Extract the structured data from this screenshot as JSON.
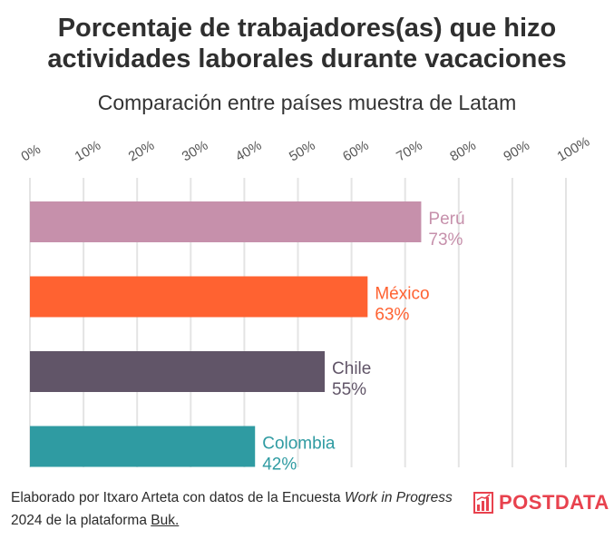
{
  "header": {
    "title_line1": "Porcentaje de trabajadores(as) que hizo",
    "title_line2": "actividades laborales durante vacaciones",
    "subtitle": "Comparación entre países muestra de Latam"
  },
  "chart_data": {
    "type": "bar",
    "orientation": "horizontal",
    "title": "Porcentaje de trabajadores(as) que hizo actividades laborales durante vacaciones",
    "subtitle": "Comparación entre países muestra de Latam",
    "xlim": [
      0,
      100
    ],
    "x_ticks": [
      0,
      10,
      20,
      30,
      40,
      50,
      60,
      70,
      80,
      90,
      100
    ],
    "x_tick_labels": [
      "0%",
      "10%",
      "20%",
      "30%",
      "40%",
      "50%",
      "60%",
      "70%",
      "80%",
      "90%",
      "100%"
    ],
    "categories": [
      "Perú",
      "México",
      "Chile",
      "Colombia"
    ],
    "values": [
      73,
      63,
      55,
      42
    ],
    "value_labels": [
      "73%",
      "63%",
      "55%",
      "42%"
    ],
    "colors": [
      "#c690ab",
      "#ff6231",
      "#615568",
      "#2f9ba2"
    ],
    "grid": true
  },
  "footer": {
    "text_part1": "Elaborado por Itxaro Arteta con datos de la Encuesta ",
    "italic_part": "Work in Progress",
    "text_part2": " 2024 de la plataforma ",
    "link_text": "Buk.",
    "logo_text": "POSTDATA",
    "logo_color": "#e8424e"
  }
}
